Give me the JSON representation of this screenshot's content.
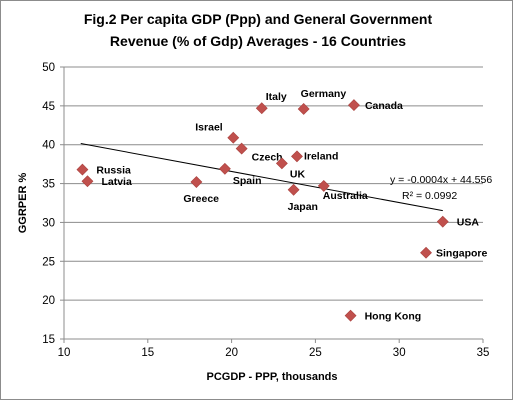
{
  "chart_data": {
    "type": "scatter",
    "title_line1": "Fig.2 Per capita GDP (Ppp) and General Government",
    "title_line2": "Revenue (% of Gdp) Averages - 16 Countries",
    "xlabel": "PCGDP - PPP, thousands",
    "ylabel": "GGRPER %",
    "xlim": [
      10,
      35
    ],
    "ylim": [
      15,
      50
    ],
    "x_ticks": [
      10,
      15,
      20,
      25,
      30,
      35
    ],
    "y_ticks": [
      15,
      20,
      25,
      30,
      35,
      40,
      45,
      50
    ],
    "grid": "horizontal",
    "marker_color": "#c0504d",
    "points": [
      {
        "label": "Russia",
        "x": 11.1,
        "y": 36.8
      },
      {
        "label": "Latvia",
        "x": 11.4,
        "y": 35.3
      },
      {
        "label": "Greece",
        "x": 17.9,
        "y": 35.2
      },
      {
        "label": "Spain",
        "x": 19.6,
        "y": 36.9
      },
      {
        "label": "Israel",
        "x": 20.1,
        "y": 40.9
      },
      {
        "label": "Czech",
        "x": 20.6,
        "y": 39.5
      },
      {
        "label": "Italy",
        "x": 21.8,
        "y": 44.7
      },
      {
        "label": "Germany",
        "x": 24.3,
        "y": 44.6
      },
      {
        "label": "Canada",
        "x": 27.3,
        "y": 45.1
      },
      {
        "label": "UK",
        "x": 23.0,
        "y": 37.6
      },
      {
        "label": "Ireland",
        "x": 23.9,
        "y": 38.5
      },
      {
        "label": "Japan",
        "x": 23.7,
        "y": 34.2
      },
      {
        "label": "Australia",
        "x": 25.5,
        "y": 34.7
      },
      {
        "label": "USA",
        "x": 32.6,
        "y": 30.1
      },
      {
        "label": "Singapore",
        "x": 31.6,
        "y": 26.1
      },
      {
        "label": "Hong Kong",
        "x": 27.1,
        "y": 18.0
      }
    ],
    "trendline": {
      "x_range": [
        11.0,
        32.6
      ],
      "slope_per_thousand": -0.4,
      "intercept": 44.556,
      "equation": "y = -0.0004x + 44.556",
      "r_squared": "R² = 0.0992"
    }
  }
}
